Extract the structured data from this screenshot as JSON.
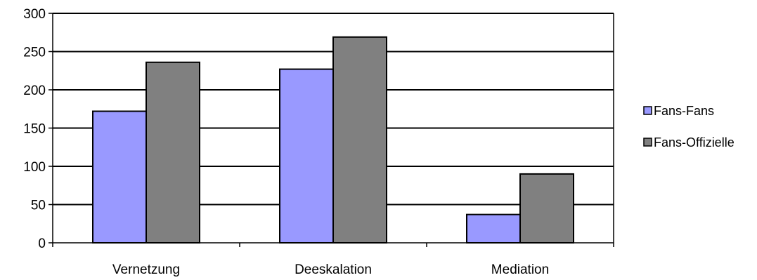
{
  "chart_data": {
    "type": "bar",
    "categories": [
      "Vernetzung",
      "Deeskalation",
      "Mediation"
    ],
    "series": [
      {
        "name": "Fans-Fans",
        "values": [
          172,
          227,
          37
        ],
        "color": "#9999ff"
      },
      {
        "name": "Fans-Offizielle",
        "values": [
          236,
          269,
          90
        ],
        "color": "#808080"
      }
    ],
    "ylim": [
      0,
      300
    ],
    "yticks": [
      0,
      50,
      100,
      150,
      200,
      250,
      300
    ],
    "grid": true,
    "legend_position": "right",
    "title": "",
    "xlabel": "",
    "ylabel": ""
  }
}
